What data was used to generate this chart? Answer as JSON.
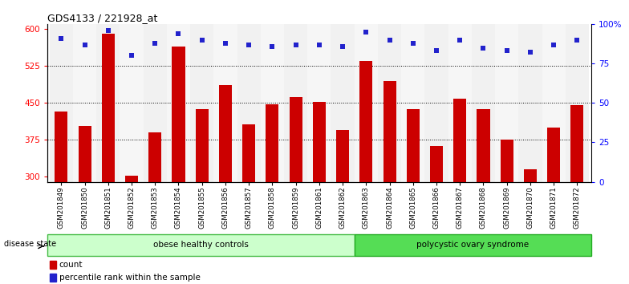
{
  "title": "GDS4133 / 221928_at",
  "samples": [
    "GSM201849",
    "GSM201850",
    "GSM201851",
    "GSM201852",
    "GSM201853",
    "GSM201854",
    "GSM201855",
    "GSM201856",
    "GSM201857",
    "GSM201858",
    "GSM201859",
    "GSM201861",
    "GSM201862",
    "GSM201863",
    "GSM201864",
    "GSM201865",
    "GSM201866",
    "GSM201867",
    "GSM201868",
    "GSM201869",
    "GSM201870",
    "GSM201871",
    "GSM201872"
  ],
  "counts": [
    432,
    403,
    590,
    302,
    390,
    564,
    438,
    487,
    407,
    447,
    462,
    452,
    395,
    536,
    494,
    438,
    363,
    458,
    438,
    376,
    315,
    400,
    445
  ],
  "percentiles": [
    91,
    87,
    96,
    80,
    88,
    94,
    90,
    88,
    87,
    86,
    87,
    87,
    86,
    95,
    90,
    88,
    83,
    90,
    85,
    83,
    82,
    87,
    90
  ],
  "bar_color": "#cc0000",
  "dot_color": "#2222cc",
  "ylim_left": [
    290,
    610
  ],
  "ylim_right": [
    0,
    100
  ],
  "yticks_left": [
    300,
    375,
    450,
    525,
    600
  ],
  "yticks_right": [
    0,
    25,
    50,
    75,
    100
  ],
  "ytick_labels_left": [
    "300",
    "375",
    "450",
    "525",
    "600"
  ],
  "ytick_labels_right": [
    "0",
    "25",
    "50",
    "75",
    "100%"
  ],
  "group1_label": "obese healthy controls",
  "group2_label": "polycystic ovary syndrome",
  "disease_state_label": "disease state",
  "legend_count": "count",
  "legend_pct": "percentile rank within the sample",
  "grid_lines": [
    375,
    450,
    525
  ],
  "obese_facecolor": "#ccffcc",
  "obese_edgecolor": "#44bb44",
  "poly_facecolor": "#55dd55",
  "poly_edgecolor": "#22aa22",
  "n_obese": 13,
  "n_poly": 10,
  "bar_width": 0.55
}
